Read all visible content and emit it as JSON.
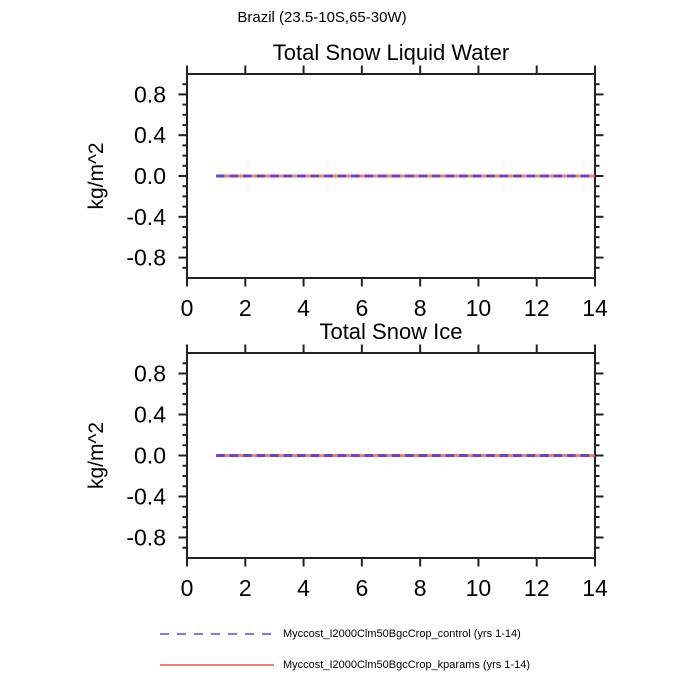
{
  "page_title": "Brazil (23.5-10S,65-30W)",
  "colors": {
    "background": "#ffffff",
    "axis": "#222222",
    "text": "#000000",
    "control_plot_dash": "#6a42cc",
    "control_legend": "#7b7bec",
    "kparams": "#f08078"
  },
  "legend": [
    {
      "label": "Myccost_I2000Clm50BgcCrop_control (yrs 1-14)",
      "style": "dashed",
      "color": "#7b7bec"
    },
    {
      "label": "Myccost_I2000Clm50BgcCrop_kparams (yrs 1-14)",
      "style": "solid",
      "color": "#f08078"
    }
  ],
  "chart_data": [
    {
      "type": "line",
      "title": "Total Snow Liquid Water",
      "xlabel": "",
      "ylabel": "kg/m^2",
      "xlim": [
        0,
        14
      ],
      "ylim": [
        -1.0,
        1.0
      ],
      "xticks": [
        0,
        2,
        4,
        6,
        8,
        10,
        12,
        14
      ],
      "xtick_labels": [
        "0",
        "2",
        "4",
        "6",
        "8",
        "10",
        "12",
        "14"
      ],
      "yticks": [
        0.8,
        0.4,
        0.0,
        -0.4,
        -0.8
      ],
      "ytick_labels": [
        "0.8",
        "0.4",
        "0.0",
        "-0.4",
        "-0.8"
      ],
      "y_minor_step": 0.1,
      "grid": false,
      "series": [
        {
          "name": "Myccost_I2000Clm50BgcCrop_control (yrs 1-14)",
          "style": "dashed",
          "color": "#6a42cc",
          "x": [
            1,
            14
          ],
          "y": [
            0.0,
            0.0
          ]
        },
        {
          "name": "Myccost_I2000Clm50BgcCrop_kparams (yrs 1-14)",
          "style": "solid",
          "color": "#f08078",
          "x": [
            1,
            14
          ],
          "y": [
            0.0,
            0.0
          ]
        }
      ]
    },
    {
      "type": "line",
      "title": "Total Snow Ice",
      "xlabel": "",
      "ylabel": "kg/m^2",
      "xlim": [
        0,
        14
      ],
      "ylim": [
        -1.0,
        1.0
      ],
      "xticks": [
        0,
        2,
        4,
        6,
        8,
        10,
        12,
        14
      ],
      "xtick_labels": [
        "0",
        "2",
        "4",
        "6",
        "8",
        "10",
        "12",
        "14"
      ],
      "yticks": [
        0.8,
        0.4,
        0.0,
        -0.4,
        -0.8
      ],
      "ytick_labels": [
        "0.8",
        "0.4",
        "0.0",
        "-0.4",
        "-0.8"
      ],
      "y_minor_step": 0.1,
      "grid": false,
      "series": [
        {
          "name": "Myccost_I2000Clm50BgcCrop_control (yrs 1-14)",
          "style": "dashed",
          "color": "#6a42cc",
          "x": [
            1,
            14
          ],
          "y": [
            0.0,
            0.0
          ]
        },
        {
          "name": "Myccost_I2000Clm50BgcCrop_kparams (yrs 1-14)",
          "style": "solid",
          "color": "#f08078",
          "x": [
            1,
            14
          ],
          "y": [
            0.0,
            0.0
          ]
        }
      ]
    }
  ]
}
